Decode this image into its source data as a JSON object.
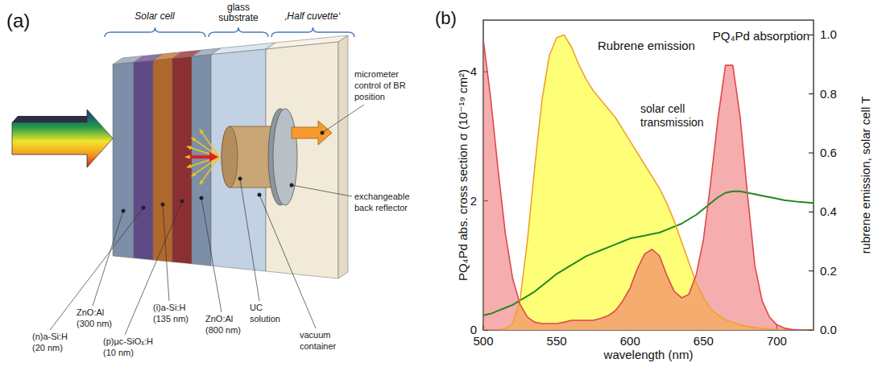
{
  "diagram": {
    "label": "(a)",
    "sections": [
      "Solar cell",
      "glass substrate",
      "‚Half cuvette‘"
    ],
    "layers": [
      "ZnO:Al (300 nm)",
      "(n)a-Si:H (20 nm)",
      "(i)a-Si:H (135 nm)",
      "(p)µc-SiOₓ:H (10 nm)",
      "ZnO:Al (800 nm)"
    ],
    "components": [
      "UC solution",
      "vacuum container",
      "exchangeable back reflector",
      "micrometer control of BR position"
    ]
  },
  "chart_data": {
    "type": "line",
    "panel_label": "(b)",
    "x_label": "wavelength (nm)",
    "y_label": "PQ₄Pd abs. cross section σ (10⁻¹⁹ cm²)",
    "y2_label": "rubrene emission, solar cell T",
    "x": [
      500,
      505,
      510,
      515,
      520,
      525,
      530,
      535,
      540,
      545,
      550,
      555,
      560,
      565,
      570,
      575,
      580,
      585,
      590,
      595,
      600,
      605,
      610,
      615,
      620,
      625,
      630,
      635,
      640,
      645,
      650,
      655,
      660,
      665,
      670,
      675,
      680,
      685,
      690,
      695,
      700,
      705,
      710,
      715,
      720,
      725
    ],
    "series": [
      {
        "name": "PQ₄Pd absorption",
        "type": "area",
        "color": "#ec6a6a",
        "values": [
          4.5,
          3.6,
          2.5,
          1.5,
          0.8,
          0.4,
          0.2,
          0.12,
          0.1,
          0.1,
          0.1,
          0.12,
          0.15,
          0.15,
          0.15,
          0.15,
          0.18,
          0.22,
          0.3,
          0.45,
          0.65,
          0.95,
          1.18,
          1.25,
          1.15,
          0.85,
          0.6,
          0.5,
          0.55,
          0.85,
          1.4,
          2.3,
          3.3,
          4.1,
          4.1,
          3.3,
          2.1,
          1.0,
          0.45,
          0.2,
          0.08,
          0.03,
          0.01,
          0,
          0,
          0
        ]
      },
      {
        "name": "Rubrene emission",
        "type": "area",
        "color": "#ffff70",
        "axis": "y2",
        "values": [
          0,
          0,
          0,
          0.005,
          0.02,
          0.1,
          0.3,
          0.55,
          0.78,
          0.93,
          0.99,
          1.0,
          0.96,
          0.9,
          0.85,
          0.81,
          0.78,
          0.75,
          0.72,
          0.68,
          0.64,
          0.6,
          0.56,
          0.52,
          0.48,
          0.43,
          0.37,
          0.3,
          0.23,
          0.16,
          0.11,
          0.07,
          0.05,
          0.035,
          0.025,
          0.018,
          0.012,
          0.008,
          0.005,
          0.003,
          0.002,
          0,
          0,
          0,
          0,
          0
        ]
      },
      {
        "name": "solar cell transmission",
        "type": "line",
        "color": "#1f8a1f",
        "axis": "y2",
        "values": [
          0.05,
          0.055,
          0.065,
          0.075,
          0.085,
          0.1,
          0.115,
          0.13,
          0.15,
          0.17,
          0.19,
          0.205,
          0.22,
          0.235,
          0.25,
          0.26,
          0.27,
          0.28,
          0.29,
          0.3,
          0.31,
          0.315,
          0.32,
          0.325,
          0.33,
          0.34,
          0.35,
          0.36,
          0.375,
          0.39,
          0.41,
          0.43,
          0.45,
          0.465,
          0.47,
          0.47,
          0.465,
          0.46,
          0.455,
          0.45,
          0.445,
          0.44,
          0.437,
          0.434,
          0.432,
          0.43
        ]
      }
    ],
    "xlim": [
      500,
      725
    ],
    "xticks": [
      500,
      550,
      600,
      650,
      700
    ],
    "ylim": [
      0,
      4.8
    ],
    "yticks": [
      0,
      2,
      4
    ],
    "y2lim": [
      0,
      1.05
    ],
    "y2ticks": [
      {
        "value": 0,
        "label": "0.0"
      },
      0.2,
      0.4,
      0.6,
      0.8,
      {
        "value": 1,
        "label": "1.0"
      }
    ],
    "grid": false
  }
}
